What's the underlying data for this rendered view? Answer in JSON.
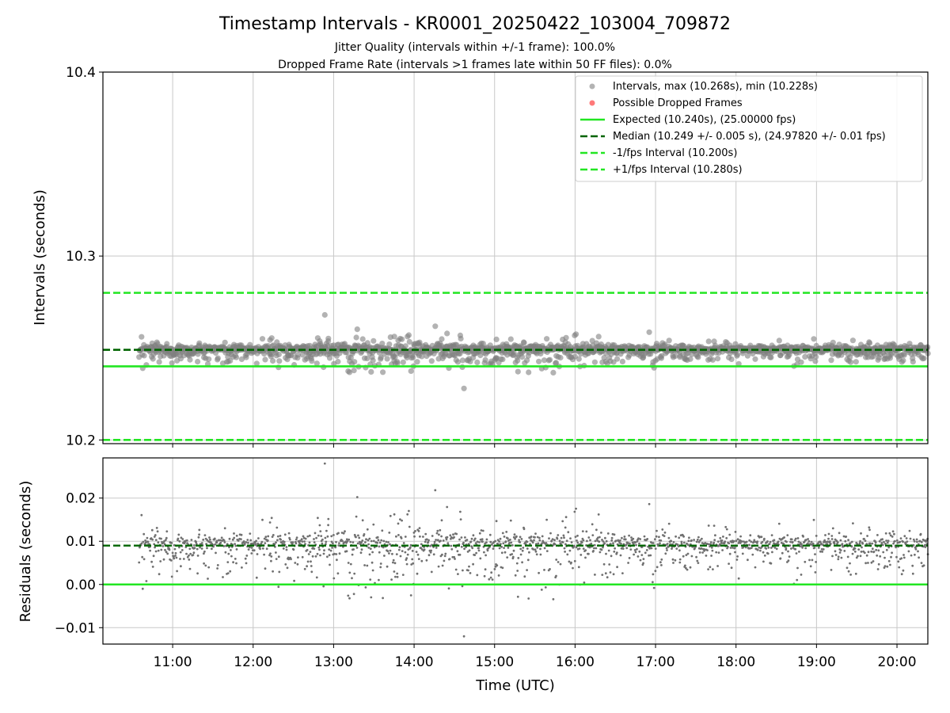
{
  "figure": {
    "title": "Timestamp Intervals - KR0001_20250422_103004_709872",
    "subtitle_1": "Jitter Quality (intervals within +/-1 frame): 100.0%",
    "subtitle_2": "Dropped Frame Rate (intervals >1 frames late within 50 FF files): 0.0%"
  },
  "colors": {
    "scatter": "#808080",
    "dropped": "#ff4040",
    "expected": "#22e622",
    "median": "#006400",
    "bound": "#22e622",
    "grid": "#c8c8c8"
  },
  "chart_data": [
    {
      "type": "scatter",
      "ylabel": "Intervals (seconds)",
      "ylim": [
        10.198,
        10.4
      ],
      "xlim": [
        "10:08",
        "20:23"
      ],
      "yticks": [
        "10.2",
        "10.3",
        "10.4"
      ],
      "grid": true,
      "legend_position": "top-right",
      "series": [
        {
          "name": "Intervals, max (10.268s), min (10.228s)",
          "kind": "scatter",
          "x_range": [
            "10:35",
            "20:23"
          ],
          "y_median": 10.249,
          "y_max": 10.268,
          "y_min": 10.228
        },
        {
          "name": "Possible Dropped Frames",
          "kind": "scatter",
          "points": []
        }
      ],
      "lines": [
        {
          "name": "Expected (10.240s), (25.00000 fps)",
          "y": 10.24,
          "style": "solid"
        },
        {
          "name": "Median (10.249 +/- 0.005 s), (24.97820 +/- 0.01 fps)",
          "y": 10.249,
          "style": "dashed"
        },
        {
          "name": "-1/fps Interval (10.200s)",
          "y": 10.2,
          "style": "dashed"
        },
        {
          "name": "+1/fps Interval (10.280s)",
          "y": 10.28,
          "style": "dashed"
        }
      ]
    },
    {
      "type": "scatter",
      "xlabel": "Time (UTC)",
      "ylabel": "Residuals (seconds)",
      "ylim": [
        -0.0138,
        0.0293
      ],
      "xlim": [
        "10:08",
        "20:23"
      ],
      "yticks": [
        "0.02",
        "0.01",
        "0.00",
        "−0.01"
      ],
      "xticks": [
        "11:00",
        "12:00",
        "13:00",
        "14:00",
        "15:00",
        "16:00",
        "17:00",
        "18:00",
        "19:00",
        "20:00"
      ],
      "grid": true,
      "lines": [
        {
          "y": 0.009,
          "style": "dashed"
        },
        {
          "y": 0.0,
          "style": "solid"
        }
      ],
      "series": [
        {
          "kind": "scatter",
          "x_range": [
            "10:35",
            "20:23"
          ],
          "y_median": 0.009,
          "y_max": 0.028,
          "y_min": -0.012
        }
      ]
    }
  ]
}
